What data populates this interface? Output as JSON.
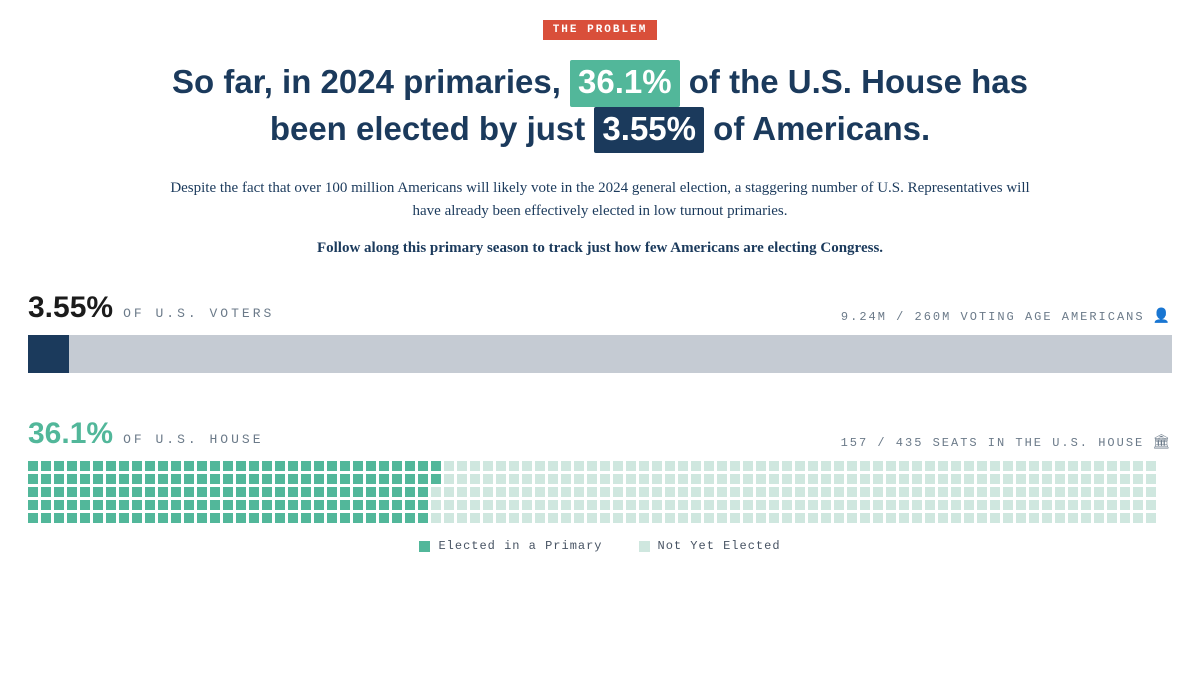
{
  "tag": "THE PROBLEM",
  "headline": {
    "p1": "So far, in 2024 primaries, ",
    "badge1": "36.1%",
    "badge1_bg": "#52b79a",
    "p2": " of the U.S. House has been elected by just ",
    "badge2": "3.55%",
    "badge2_bg": "#1b3a5c",
    "p3": " of Americans."
  },
  "subtext": "Despite the fact that over 100 million Americans will likely vote in the 2024 general election, a staggering number of U.S. Representatives will have already been effectively elected in low turnout primaries.",
  "follow": "Follow along this primary season to track just how few Americans are electing Congress.",
  "voters": {
    "percent": "3.55%",
    "label": "OF U.S. VOTERS",
    "right": "9.24M / 260M VOTING AGE AMERICANS",
    "icon": "👤",
    "bar_pct": 3.55,
    "bar_fill_color": "#1b3a5c",
    "bar_bg_color": "#c5cbd3"
  },
  "house": {
    "percent": "36.1%",
    "label": "OF U.S. HOUSE",
    "right": "157 / 435 SEATS IN THE U.S. HOUSE",
    "icon": "🏛",
    "filled": 157,
    "total": 435,
    "rows": 5,
    "cols": 87,
    "cell_filled_color": "#52b79a",
    "cell_empty_color": "#cfe7df"
  },
  "legend": {
    "filled_label": "Elected in a Primary",
    "empty_label": "Not Yet Elected"
  }
}
